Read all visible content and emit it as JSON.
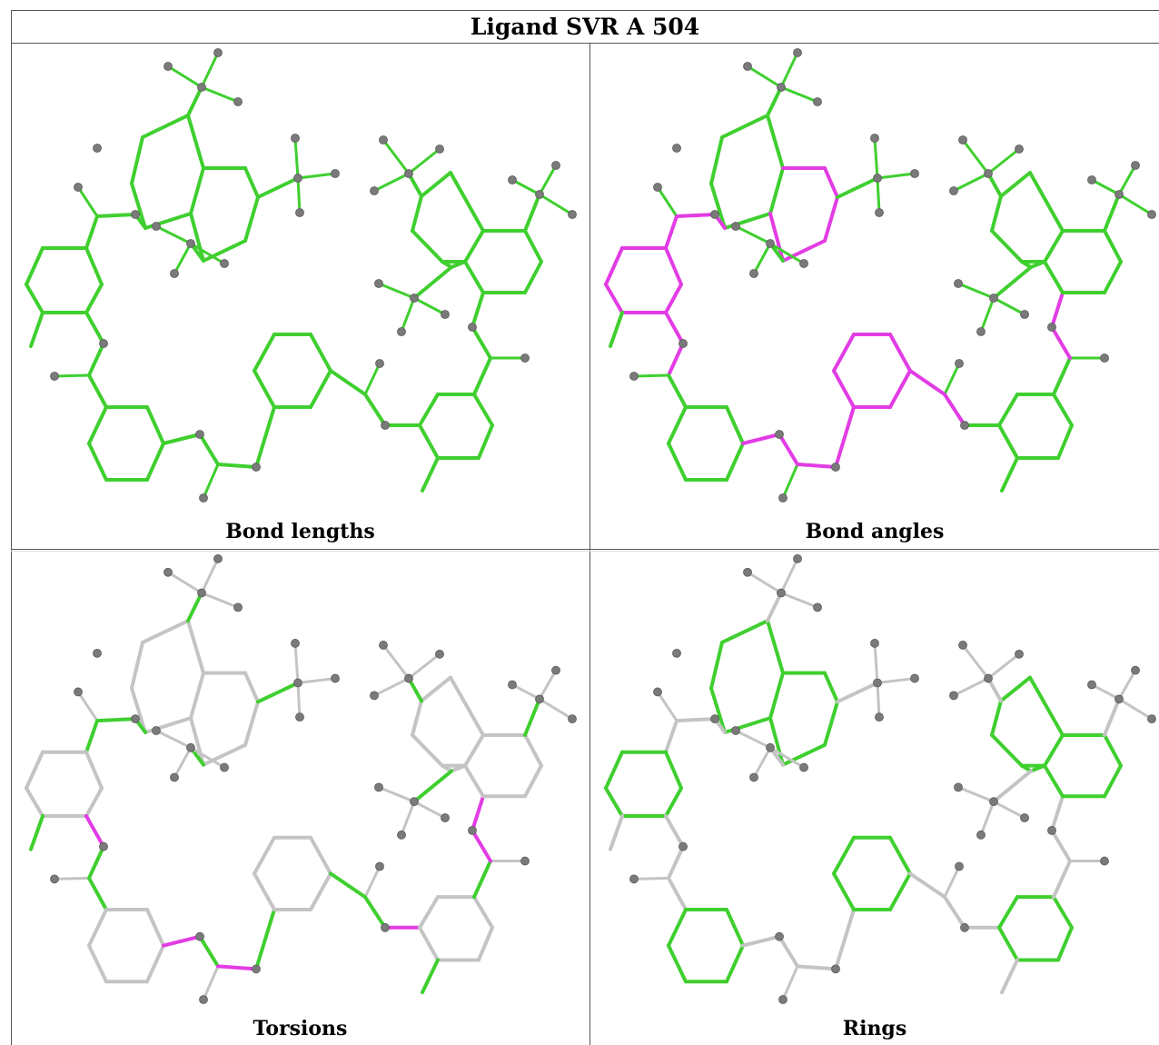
{
  "title": "Ligand SVR A 504",
  "colors": {
    "ok": "#3fcf2f",
    "flag": "#e23ce4",
    "neutral": "#c4c4c4",
    "atom": "#7a7a7a",
    "border": "#555555"
  },
  "panels": [
    {
      "caption": "Bond lengths",
      "mode": "lengths"
    },
    {
      "caption": "Bond angles",
      "mode": "angles"
    },
    {
      "caption": "Torsions",
      "mode": "torsions"
    },
    {
      "caption": "Rings",
      "mode": "rings"
    }
  ]
}
